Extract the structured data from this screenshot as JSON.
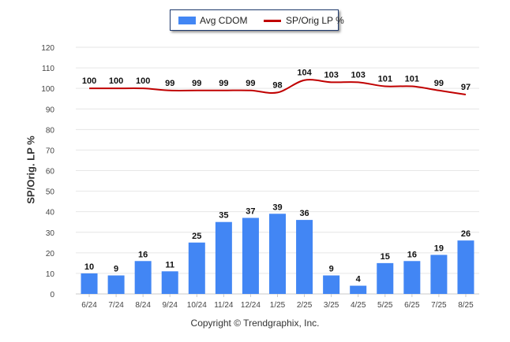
{
  "chart_data": {
    "type": "bar+line",
    "categories": [
      "6/24",
      "7/24",
      "8/24",
      "9/24",
      "10/24",
      "11/24",
      "12/24",
      "1/25",
      "2/25",
      "3/25",
      "4/25",
      "5/25",
      "6/25",
      "7/25",
      "8/25"
    ],
    "series": [
      {
        "name": "Avg CDOM",
        "type": "bar",
        "color": "#4286f4",
        "values": [
          10,
          9,
          16,
          11,
          25,
          35,
          37,
          39,
          36,
          9,
          4,
          15,
          16,
          19,
          26
        ]
      },
      {
        "name": "SP/Orig LP %",
        "type": "line",
        "color": "#c00000",
        "values": [
          100,
          100,
          100,
          99,
          99,
          99,
          99,
          98,
          104,
          103,
          103,
          101,
          101,
          99,
          97
        ]
      }
    ],
    "ylabel": "SP/Orig. LP %",
    "ylim": [
      0,
      120
    ],
    "yticks": [
      0,
      10,
      20,
      30,
      40,
      50,
      60,
      70,
      80,
      90,
      100,
      110,
      120
    ],
    "grid": true,
    "legend": "top-center"
  },
  "footer": {
    "copyright": "Copyright © Trendgraphix, Inc."
  }
}
